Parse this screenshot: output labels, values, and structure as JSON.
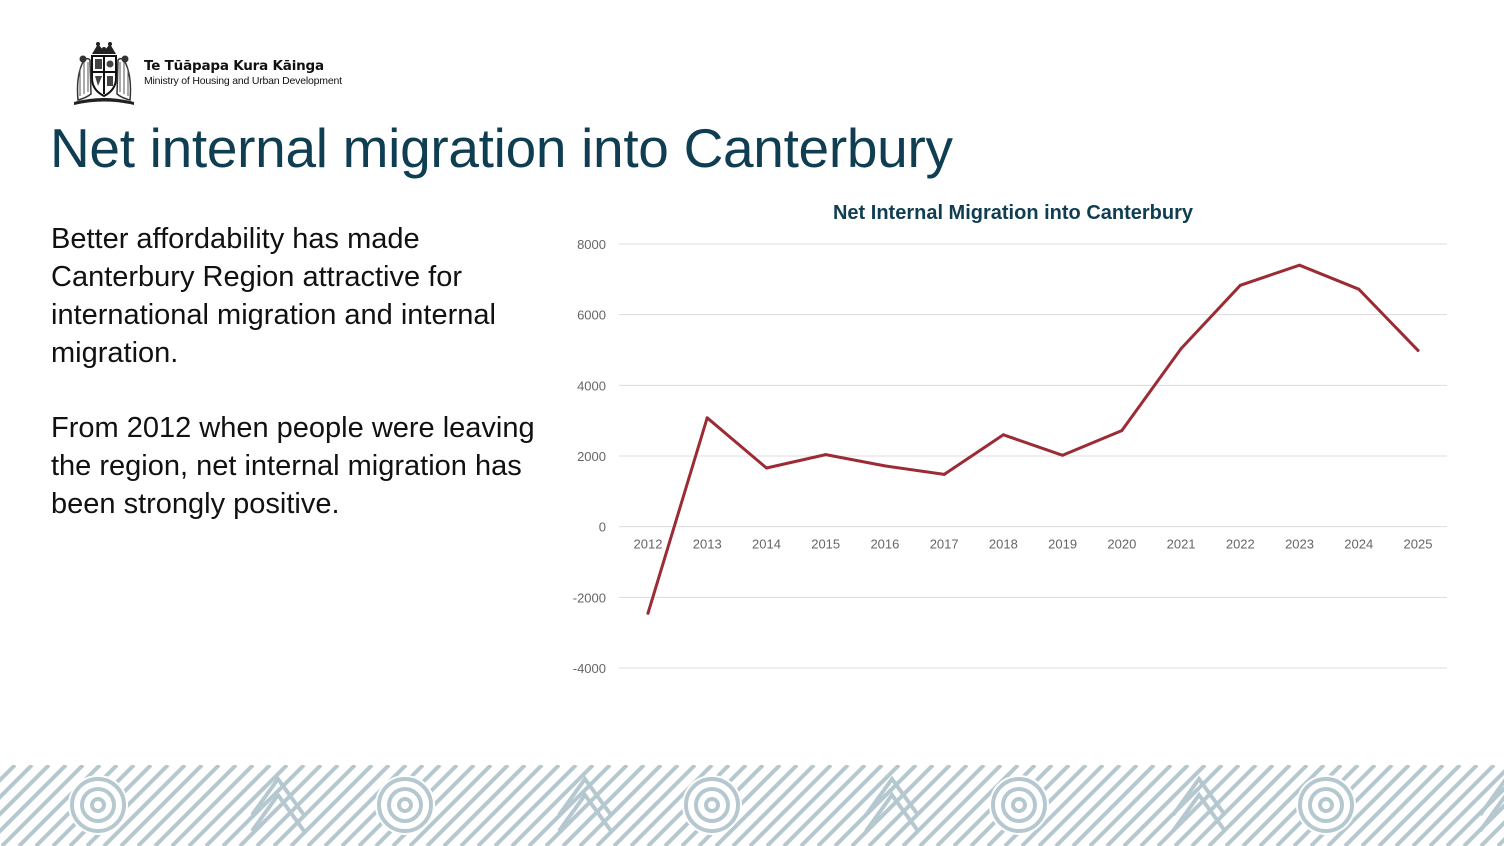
{
  "logo": {
    "maori_name": "Te Tūāpapa Kura Kāinga",
    "english_name": "Ministry of Housing and Urban Development"
  },
  "page_title": "Net internal migration into Canterbury",
  "body": {
    "paragraphs": [
      "Better affordability has made Canterbury Region attractive for international migration and internal migration.",
      "From 2012 when people were leaving the region, net internal migration has been strongly positive."
    ]
  },
  "colors": {
    "title": "#0f3d52",
    "line": "#9b2c35",
    "grid": "#dcdcdc",
    "tick": "#666666",
    "pattern_bg": "#ffffff",
    "pattern_line": "#b5c8cf"
  },
  "chart_data": {
    "type": "line",
    "title": "Net Internal Migration into Canterbury",
    "xlabel": "",
    "ylabel": "",
    "categories": [
      "2012",
      "2013",
      "2014",
      "2015",
      "2016",
      "2017",
      "2018",
      "2019",
      "2020",
      "2021",
      "2022",
      "2023",
      "2024",
      "2025"
    ],
    "series": [
      {
        "name": "Net internal migration",
        "values": [
          -2450,
          3080,
          1660,
          2040,
          1720,
          1480,
          2600,
          2020,
          2720,
          5040,
          6830,
          7400,
          6720,
          4990
        ]
      }
    ],
    "ylim": [
      -4000,
      8000
    ],
    "yticks": [
      -4000,
      -2000,
      0,
      2000,
      4000,
      6000,
      8000
    ],
    "grid": true,
    "legend": "none"
  }
}
